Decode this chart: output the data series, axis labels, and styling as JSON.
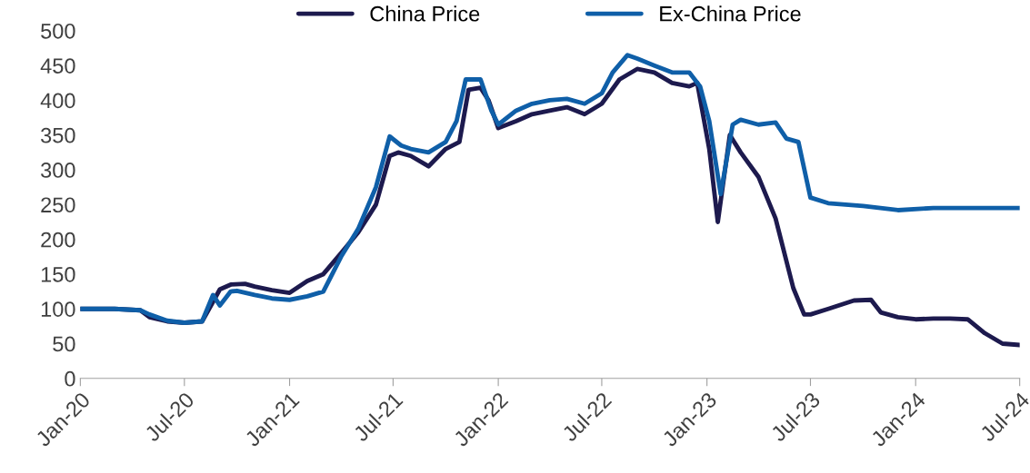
{
  "chart_data": {
    "type": "line",
    "xlim": [
      "2020-01-01",
      "2024-07-01"
    ],
    "xticks": [
      {
        "value": "2020-01-01",
        "label": "Jan-20"
      },
      {
        "value": "2020-07-01",
        "label": "Jul-20"
      },
      {
        "value": "2021-01-01",
        "label": "Jan-21"
      },
      {
        "value": "2021-07-01",
        "label": "Jul-21"
      },
      {
        "value": "2022-01-01",
        "label": "Jan-22"
      },
      {
        "value": "2022-07-01",
        "label": "Jul-22"
      },
      {
        "value": "2023-01-01",
        "label": "Jan-23"
      },
      {
        "value": "2023-07-01",
        "label": "Jul-23"
      },
      {
        "value": "2024-01-01",
        "label": "Jan-24"
      },
      {
        "value": "2024-07-01",
        "label": "Jul-24"
      }
    ],
    "ylim": [
      0,
      500
    ],
    "yticks": [
      0,
      50,
      100,
      150,
      200,
      250,
      300,
      350,
      400,
      450,
      500
    ],
    "grid": false,
    "legend": "top",
    "marker": "none",
    "line_style": "solid",
    "series": [
      {
        "name": "China Price",
        "color": "#1d1a4e",
        "x": [
          "2020-01-01",
          "2020-03-01",
          "2020-04-15",
          "2020-05-01",
          "2020-06-01",
          "2020-07-01",
          "2020-08-01",
          "2020-08-20",
          "2020-09-01",
          "2020-09-20",
          "2020-10-15",
          "2020-11-01",
          "2020-12-01",
          "2021-01-01",
          "2021-02-01",
          "2021-03-01",
          "2021-04-01",
          "2021-05-01",
          "2021-06-01",
          "2021-06-25",
          "2021-07-10",
          "2021-08-01",
          "2021-09-01",
          "2021-10-01",
          "2021-10-25",
          "2021-11-10",
          "2021-12-01",
          "2021-12-15",
          "2022-01-01",
          "2022-02-01",
          "2022-03-01",
          "2022-04-01",
          "2022-05-01",
          "2022-06-01",
          "2022-07-01",
          "2022-08-01",
          "2022-09-01",
          "2022-10-01",
          "2022-11-01",
          "2022-12-01",
          "2022-12-15",
          "2023-01-05",
          "2023-01-20",
          "2023-02-10",
          "2023-03-01",
          "2023-04-01",
          "2023-05-01",
          "2023-06-01",
          "2023-06-20",
          "2023-07-01",
          "2023-08-01",
          "2023-09-15",
          "2023-10-15",
          "2023-11-01",
          "2023-12-01",
          "2024-01-01",
          "2024-02-01",
          "2024-03-01",
          "2024-04-01",
          "2024-05-01",
          "2024-06-01",
          "2024-07-01"
        ],
        "values": [
          100,
          100,
          98,
          88,
          82,
          80,
          82,
          110,
          128,
          135,
          136,
          132,
          127,
          123,
          140,
          150,
          180,
          210,
          250,
          320,
          325,
          320,
          305,
          330,
          340,
          415,
          418,
          400,
          360,
          370,
          380,
          385,
          390,
          380,
          395,
          430,
          445,
          440,
          425,
          420,
          425,
          330,
          225,
          350,
          325,
          290,
          230,
          130,
          92,
          92,
          100,
          112,
          113,
          95,
          88,
          85,
          86,
          86,
          85,
          65,
          50,
          48
        ]
      },
      {
        "name": "Ex-China Price",
        "color": "#0f5fa8",
        "x": [
          "2020-01-01",
          "2020-03-01",
          "2020-04-15",
          "2020-05-01",
          "2020-06-01",
          "2020-07-01",
          "2020-08-01",
          "2020-08-20",
          "2020-09-01",
          "2020-09-20",
          "2020-10-01",
          "2020-11-01",
          "2020-12-01",
          "2021-01-01",
          "2021-02-01",
          "2021-03-01",
          "2021-04-01",
          "2021-05-01",
          "2021-06-01",
          "2021-06-25",
          "2021-07-15",
          "2021-08-01",
          "2021-09-01",
          "2021-10-01",
          "2021-10-20",
          "2021-11-05",
          "2021-12-01",
          "2021-12-20",
          "2022-01-01",
          "2022-02-01",
          "2022-03-01",
          "2022-04-01",
          "2022-05-01",
          "2022-06-01",
          "2022-07-01",
          "2022-07-20",
          "2022-08-15",
          "2022-09-01",
          "2022-10-01",
          "2022-11-01",
          "2022-12-01",
          "2022-12-20",
          "2023-01-05",
          "2023-01-25",
          "2023-02-15",
          "2023-03-01",
          "2023-04-01",
          "2023-05-01",
          "2023-05-20",
          "2023-06-10",
          "2023-07-01",
          "2023-08-01",
          "2023-10-01",
          "2023-12-01",
          "2024-02-01",
          "2024-05-01",
          "2024-07-01"
        ],
        "values": [
          100,
          100,
          98,
          92,
          83,
          80,
          82,
          120,
          105,
          125,
          126,
          120,
          115,
          113,
          118,
          125,
          175,
          215,
          275,
          348,
          335,
          330,
          325,
          340,
          370,
          430,
          430,
          385,
          365,
          385,
          395,
          400,
          402,
          395,
          410,
          440,
          465,
          460,
          450,
          440,
          440,
          420,
          370,
          265,
          365,
          372,
          365,
          368,
          345,
          340,
          260,
          252,
          248,
          242,
          245,
          245,
          245
        ]
      }
    ]
  }
}
